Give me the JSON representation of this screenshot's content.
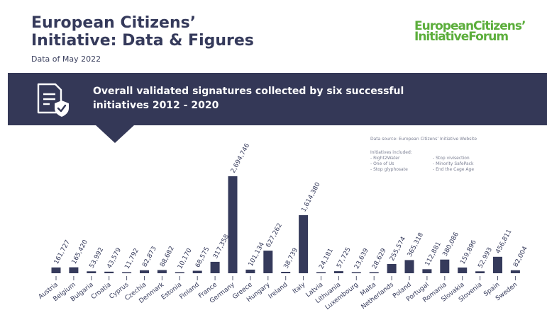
{
  "header": {
    "title_line1": "European Citizens’",
    "title_line2": "Initiative: Data & Figures",
    "date": "Data of May 2022",
    "logo_line1": "EuropeanCitizens’",
    "logo_line2": "InitiativeForum"
  },
  "banner": {
    "icon": "document-shield-icon",
    "title": "Overall validated signatures collected by six successful initiatives 2012 - 2020"
  },
  "notes": {
    "source": "Data source: European Citizens’ Initiative Website",
    "initiatives_heading": "Initiatives included:",
    "initiatives": [
      "- Right2Water",
      "- Stop vivisection",
      "- One of Us",
      "- Minority SafePack",
      "- Stop glyphosate",
      "- End the Cage Age"
    ]
  },
  "colors": {
    "bar": "#353a5b",
    "banner": "#343857",
    "logo": "#5cae3c",
    "axis": "#555a72"
  },
  "chart_data": {
    "type": "bar",
    "categories": [
      "Austria",
      "Belgium",
      "Bulgaria",
      "Croatia",
      "Cyprus",
      "Czechia",
      "Denmark",
      "Estonia",
      "Finland",
      "France",
      "Germany",
      "Greece",
      "Hungary",
      "Ireland",
      "Italy",
      "Latvia",
      "Lithuania",
      "Luxembourg",
      "Malta",
      "Netherlands",
      "Poland",
      "Portugal",
      "Romania",
      "Slovakia",
      "Slovenia",
      "Spain",
      "Sweden"
    ],
    "values": [
      161727,
      165420,
      53992,
      43579,
      11792,
      82873,
      88682,
      10170,
      68575,
      317358,
      2694746,
      101134,
      627262,
      38739,
      1614380,
      24181,
      57725,
      23639,
      28629,
      255574,
      365318,
      112881,
      380086,
      159896,
      52993,
      456811,
      82004
    ],
    "value_labels": [
      "161,727",
      "165,420",
      "53,992",
      "43,579",
      "11,792",
      "82,873",
      "88,682",
      "10,170",
      "68,575",
      "317,358",
      "2,694,746",
      "101,134",
      "627,262",
      "38,739",
      "1,614,380",
      "24,181",
      "57,725",
      "23,639",
      "28,629",
      "255,574",
      "365,318",
      "112,881",
      "380,086",
      "159,896",
      "52,993",
      "456,811",
      "82,004"
    ],
    "title": "",
    "xlabel": "",
    "ylabel": "",
    "ylim": [
      0,
      2694746
    ],
    "grid": false,
    "legend": "none"
  }
}
